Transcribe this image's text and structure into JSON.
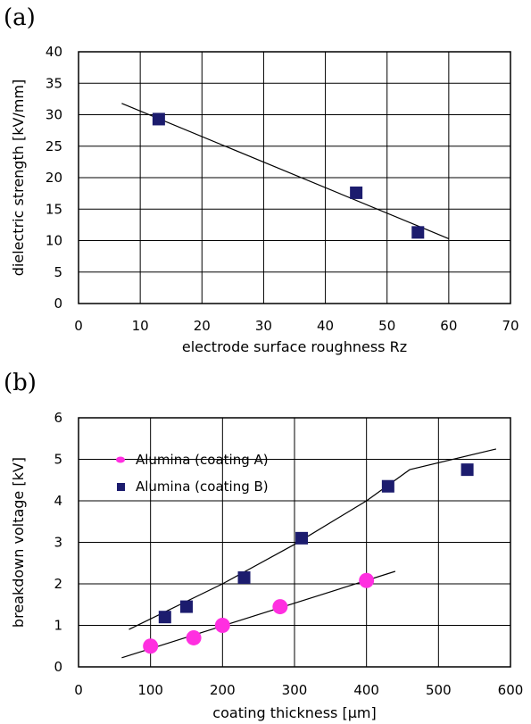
{
  "chart_data": [
    {
      "panel_label": "(a)",
      "type": "scatter",
      "xlabel": "electrode surface roughness Rz",
      "ylabel": "dielectric strength [kV/mm]",
      "xlim": [
        0,
        70
      ],
      "ylim": [
        0,
        40
      ],
      "xticks": [
        0,
        10,
        20,
        30,
        40,
        50,
        60,
        70
      ],
      "yticks": [
        0,
        5,
        10,
        15,
        20,
        25,
        30,
        35,
        40
      ],
      "grid": true,
      "colors": {
        "marker": "#1c1c6e"
      },
      "series": [
        {
          "x": [
            13,
            45,
            55
          ],
          "y": [
            29.3,
            17.6,
            11.3
          ],
          "marker": "square"
        }
      ],
      "trendline": {
        "x": [
          7,
          60
        ],
        "y": [
          31.8,
          10.3
        ]
      }
    },
    {
      "panel_label": "(b)",
      "type": "scatter",
      "xlabel": "coating thickness [µm]",
      "ylabel": "breakdown voltage [kV]",
      "xlim": [
        0,
        600
      ],
      "ylim": [
        0,
        6
      ],
      "xticks": [
        0,
        100,
        200,
        300,
        400,
        500,
        600
      ],
      "yticks": [
        0,
        1,
        2,
        3,
        4,
        5,
        6
      ],
      "grid": true,
      "legend": "upper-left",
      "series": [
        {
          "name": "Alumina (coating A)",
          "marker": "circle",
          "color": "#ff2fe0",
          "x": [
            100,
            160,
            200,
            280,
            400
          ],
          "y": [
            0.5,
            0.7,
            1.0,
            1.45,
            2.08
          ],
          "trendline": {
            "x": [
              60,
              440
            ],
            "y": [
              0.22,
              2.3
            ]
          }
        },
        {
          "name": "Alumina (coating B)",
          "marker": "square",
          "color": "#1c1c6e",
          "x": [
            120,
            150,
            230,
            310,
            430,
            540
          ],
          "y": [
            1.2,
            1.45,
            2.15,
            3.1,
            4.35,
            4.75
          ],
          "trendline": {
            "x": [
              70,
              200,
              300,
              400,
              460,
              580
            ],
            "y": [
              0.9,
              2.0,
              2.95,
              4.0,
              4.75,
              5.25
            ]
          }
        }
      ]
    }
  ]
}
